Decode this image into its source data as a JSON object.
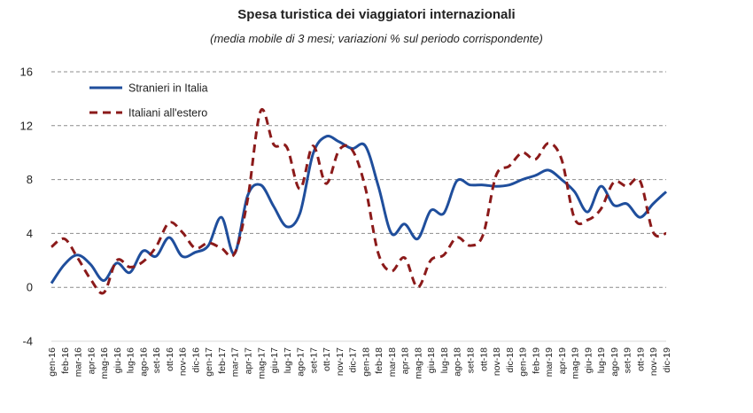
{
  "chart_data": {
    "type": "line",
    "title": "Spesa turistica dei viaggiatori internazionali",
    "subtitle": "(media mobile di 3 mesi; variazioni % sul periodo corrispondente)",
    "xlabel": "",
    "ylabel": "",
    "ylim": [
      -4,
      16
    ],
    "yticks": [
      -4,
      0,
      4,
      8,
      12,
      16
    ],
    "grid": "horizontal dashed",
    "legend_position": "top-left",
    "categories": [
      "gen-16",
      "feb-16",
      "mar-16",
      "apr-16",
      "mag-16",
      "giu-16",
      "lug-16",
      "ago-16",
      "set-16",
      "ott-16",
      "nov-16",
      "dic-16",
      "gen-17",
      "feb-17",
      "mar-17",
      "apr-17",
      "mag-17",
      "giu-17",
      "lug-17",
      "ago-17",
      "set-17",
      "ott-17",
      "nov-17",
      "dic-17",
      "gen-18",
      "feb-18",
      "mar-18",
      "apr-18",
      "mag-18",
      "giu-18",
      "lug-18",
      "ago-18",
      "set-18",
      "ott-18",
      "nov-18",
      "dic-18",
      "gen-19",
      "feb-19",
      "mar-19",
      "apr-19",
      "mag-19",
      "giu-19",
      "lug-19",
      "ago-19",
      "set-19",
      "ott-19",
      "nov-19",
      "dic-19"
    ],
    "series": [
      {
        "name": "Stranieri in Italia",
        "color": "#1f4e9c",
        "style": "solid",
        "values": [
          0.3,
          1.7,
          2.4,
          1.7,
          0.5,
          1.8,
          1.1,
          2.7,
          2.3,
          3.7,
          2.3,
          2.6,
          3.1,
          5.2,
          2.5,
          6.8,
          7.6,
          6.0,
          4.5,
          5.5,
          9.9,
          11.2,
          10.8,
          10.3,
          10.5,
          7.5,
          4.0,
          4.7,
          3.6,
          5.7,
          5.5,
          7.9,
          7.6,
          7.6,
          7.5,
          7.6,
          8.0,
          8.3,
          8.7,
          8.0,
          7.1,
          5.6,
          7.5,
          6.1,
          6.2,
          5.2,
          6.2,
          7.1
        ]
      },
      {
        "name": "Italiani all'estero",
        "color": "#8b1a1a",
        "style": "dashed",
        "values": [
          3.0,
          3.6,
          2.2,
          0.6,
          -0.4,
          2.0,
          1.5,
          1.9,
          3.0,
          4.8,
          4.1,
          2.9,
          3.3,
          2.9,
          2.5,
          6.5,
          13.1,
          10.6,
          10.4,
          7.3,
          10.5,
          7.7,
          10.2,
          10.2,
          7.4,
          2.5,
          1.2,
          2.2,
          0.0,
          2.0,
          2.4,
          3.7,
          3.1,
          3.9,
          8.3,
          9.0,
          10.0,
          9.5,
          10.7,
          9.5,
          5.1,
          5.0,
          5.8,
          7.8,
          7.5,
          7.9,
          4.1,
          4.0
        ]
      }
    ]
  }
}
